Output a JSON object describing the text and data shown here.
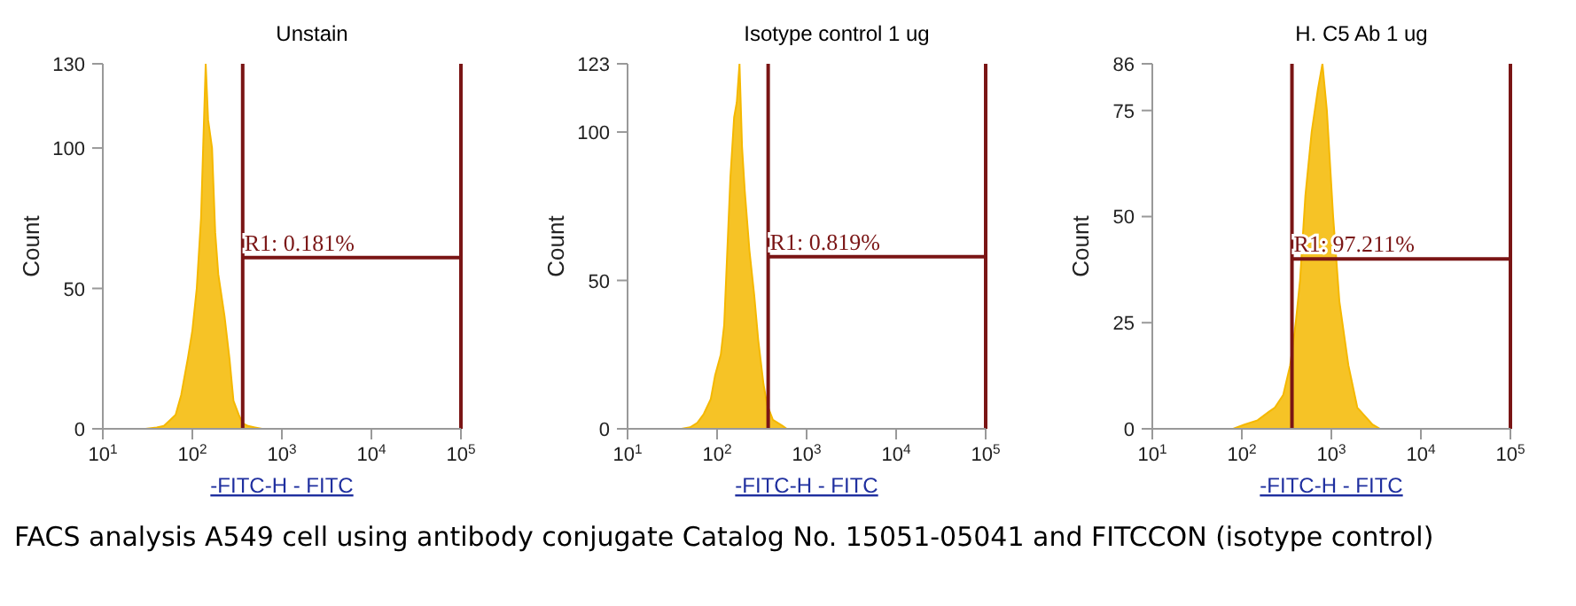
{
  "chart_data": [
    {
      "type": "area",
      "title": "Unstain",
      "xlabel": "-FITC-H - FITC",
      "ylabel": "Count",
      "log": "x",
      "xlim": [
        10,
        100000
      ],
      "xticks": [
        {
          "value": 10,
          "label": "10$^{1}$"
        },
        {
          "value": 100,
          "label": "10$^{2}$"
        },
        {
          "value": 1000,
          "label": "10$^{3}$"
        },
        {
          "value": 10000,
          "label": "10$^{4}$"
        },
        {
          "value": 100000,
          "label": "10$^{5}$"
        }
      ],
      "ylim": [
        0,
        130
      ],
      "yticks": [
        0,
        50,
        100,
        130
      ],
      "x": [
        30,
        40,
        48,
        56,
        65,
        75,
        89,
        100,
        112,
        125,
        132,
        141,
        150,
        166,
        180,
        195,
        229,
        260,
        288,
        330,
        363,
        420,
        500,
        600
      ],
      "series": [
        {
          "color": "#f5b800",
          "values": [
            0,
            0.5,
            1,
            3,
            5,
            12,
            25,
            35,
            50,
            75,
            100,
            130,
            110,
            100,
            70,
            55,
            40,
            25,
            10,
            5,
            2,
            1,
            0.5,
            0
          ]
        }
      ],
      "ref_lines": [
        {
          "axis": "x",
          "value": 365,
          "color": "#7a1515"
        },
        {
          "axis": "x",
          "value": 100000,
          "color": "#7a1515"
        }
      ],
      "annotations": [
        {
          "text": "R1: 0.181%",
          "x": 365,
          "y": 61
        },
        "FACS analysis A549 cell using antibody conjugate Catalog No. 15051-05041 and FITCCON (isotype control)"
      ]
    },
    {
      "type": "area",
      "title": "Isotype control 1 ug",
      "xlabel": "-FITC-H - FITC",
      "ylabel": "Count",
      "log": "x",
      "xlim": [
        10,
        100000
      ],
      "xticks": [
        {
          "value": 10,
          "label": "10$^{1}$"
        },
        {
          "value": 100,
          "label": "10$^{2}$"
        },
        {
          "value": 1000,
          "label": "10$^{3}$"
        },
        {
          "value": 10000,
          "label": "10$^{4}$"
        },
        {
          "value": 100000,
          "label": "10$^{5}$"
        }
      ],
      "ylim": [
        0,
        123
      ],
      "yticks": [
        0,
        50,
        100,
        123
      ],
      "x": [
        40,
        50,
        60,
        71,
        85,
        95,
        110,
        120,
        141,
        155,
        166,
        178,
        190,
        204,
        230,
        260,
        288,
        330,
        363,
        420,
        537,
        600
      ],
      "series": [
        {
          "color": "#f5b800",
          "values": [
            0,
            0.5,
            2,
            5,
            10,
            18,
            25,
            35,
            85,
            105,
            110,
            123,
            95,
            80,
            60,
            45,
            30,
            15,
            8,
            3,
            1,
            0
          ]
        }
      ],
      "ref_lines": [
        {
          "axis": "x",
          "value": 372,
          "color": "#7a1515"
        },
        {
          "axis": "x",
          "value": 100000,
          "color": "#7a1515"
        }
      ],
      "annotations": [
        {
          "text": "R1: 0.819%",
          "x": 372,
          "y": 58
        }
      ]
    },
    {
      "type": "area",
      "title": "H. C5 Ab 1 ug",
      "xlabel": "-FITC-H - FITC",
      "ylabel": "Count",
      "log": "x",
      "xlim": [
        10,
        100000
      ],
      "xticks": [
        {
          "value": 10,
          "label": "10$^{1}$"
        },
        {
          "value": 100,
          "label": "10$^{2}$"
        },
        {
          "value": 1000,
          "label": "10$^{3}$"
        },
        {
          "value": 10000,
          "label": "10$^{4}$"
        },
        {
          "value": 100000,
          "label": "10$^{5}$"
        }
      ],
      "ylim": [
        0,
        86
      ],
      "yticks": [
        0,
        25,
        50,
        75,
        86
      ],
      "x": [
        80,
        107,
        150,
        200,
        234,
        290,
        347,
        400,
        447,
        513,
        603,
        708,
        795,
        891,
        1047,
        1230,
        1549,
        1950,
        2884,
        3500
      ],
      "series": [
        {
          "color": "#f5b800",
          "values": [
            0,
            1,
            2,
            4,
            5,
            8,
            15,
            25,
            35,
            55,
            70,
            80,
            86,
            75,
            50,
            30,
            15,
            5,
            1,
            0
          ]
        }
      ],
      "ref_lines": [
        {
          "axis": "x",
          "value": 363,
          "color": "#7a1515"
        },
        {
          "axis": "x",
          "value": 100000,
          "color": "#7a1515"
        }
      ],
      "annotations": [
        {
          "text": "R1: 97.211%",
          "x": 363,
          "y": 40
        }
      ]
    }
  ]
}
